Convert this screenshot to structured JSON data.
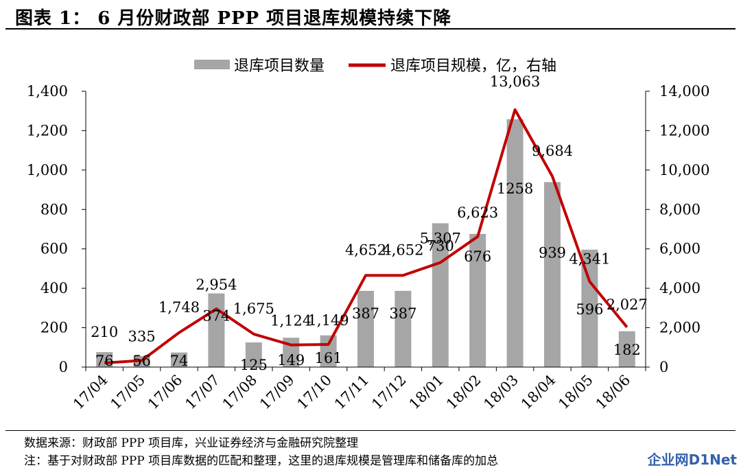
{
  "title": "图表 1：  6 月份财政部 PPP 项目退库规模持续下降",
  "notes": {
    "source": "数据来源：财政部 PPP 项目库，兴业证券经济与金融研究院整理",
    "note": "注：基于对财政部 PPP 项目库数据的匹配和整理，这里的退库规模是管理库和储备库的加总"
  },
  "watermark": {
    "part1": "企业网",
    "part2": "D1Net"
  },
  "chart_data": {
    "type": "bar+line",
    "categories": [
      "17/04",
      "17/05",
      "17/06",
      "17/07",
      "17/08",
      "17/09",
      "17/10",
      "17/11",
      "17/12",
      "18/01",
      "18/02",
      "18/03",
      "18/04",
      "18/05",
      "18/06"
    ],
    "series": [
      {
        "name": "退库项目数量",
        "type": "bar",
        "axis": "left",
        "values": [
          76,
          56,
          74,
          374,
          125,
          149,
          161,
          387,
          387,
          730,
          676,
          1258,
          939,
          596,
          182
        ],
        "labels": [
          "76",
          "56",
          "74",
          "374",
          "125",
          "149",
          "161",
          "387",
          "387",
          "730",
          "676",
          "1258",
          "939",
          "596",
          "182"
        ],
        "color": "#a6a6a6"
      },
      {
        "name": "退库项目规模，亿，右轴",
        "type": "line",
        "axis": "right",
        "values": [
          210,
          335,
          1748,
          2954,
          1675,
          1124,
          1149,
          4652,
          4652,
          5307,
          6623,
          13063,
          9684,
          4341,
          2027
        ],
        "labels": [
          "210",
          "335",
          "1,748",
          "2,954",
          "1,675",
          "1,124",
          "1,149",
          "4,652",
          "4,652",
          "5,307",
          "6,623",
          "13,063",
          "9,684",
          "4,341",
          "2,027"
        ],
        "color": "#c00000"
      }
    ],
    "left_axis": {
      "ylim": [
        0,
        1400
      ],
      "ticks": [
        "0",
        "200",
        "400",
        "600",
        "800",
        "1,000",
        "1,200",
        "1,400"
      ]
    },
    "right_axis": {
      "ylim": [
        0,
        14000
      ],
      "ticks": [
        "0",
        "2,000",
        "4,000",
        "6,000",
        "8,000",
        "10,000",
        "12,000",
        "14,000"
      ]
    },
    "legend": "top-center",
    "grid": false
  }
}
